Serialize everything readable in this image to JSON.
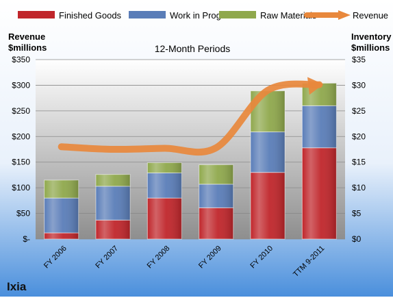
{
  "company": "Ixia",
  "chart_data": {
    "type": "bar",
    "subtitle": "12-Month Periods",
    "left_axis_label": [
      "Revenue",
      "$millions"
    ],
    "right_axis_label": [
      "Inventory",
      "$millions"
    ],
    "categories": [
      "FY 2006",
      "FY 2007",
      "FY 2008",
      "FY 2009",
      "FY 2010",
      "TTM 9-2011"
    ],
    "left_tick_labels": [
      "$-",
      "$50",
      "$100",
      "$150",
      "$200",
      "$250",
      "$300",
      "$350"
    ],
    "right_tick_labels": [
      "$0",
      "$5",
      "$10",
      "$15",
      "$20",
      "$25",
      "$30",
      "$35"
    ],
    "left_ylim": [
      0,
      350
    ],
    "right_ylim": [
      0,
      35
    ],
    "legend_position": "top",
    "stack_order": [
      "Finished Goods",
      "Work in Progress",
      "Raw Materials"
    ],
    "series": [
      {
        "name": "Finished Goods",
        "axis": "right",
        "kind": "bar",
        "color": "#c0262b",
        "values": [
          1.2,
          3.7,
          8.0,
          6.1,
          13.0,
          17.8
        ]
      },
      {
        "name": "Work in Progress",
        "axis": "right",
        "kind": "bar",
        "color": "#5a7db8",
        "values": [
          6.8,
          6.6,
          4.9,
          4.6,
          7.9,
          8.2
        ]
      },
      {
        "name": "Raw Materials",
        "axis": "right",
        "kind": "bar",
        "color": "#8fa84c",
        "values": [
          3.5,
          2.3,
          2.0,
          3.8,
          8.0,
          4.4
        ]
      },
      {
        "name": "Revenue",
        "axis": "left",
        "kind": "line",
        "color": "#e8883c",
        "values": [
          180,
          175,
          177,
          178,
          290,
          301
        ]
      }
    ],
    "grid": true
  }
}
